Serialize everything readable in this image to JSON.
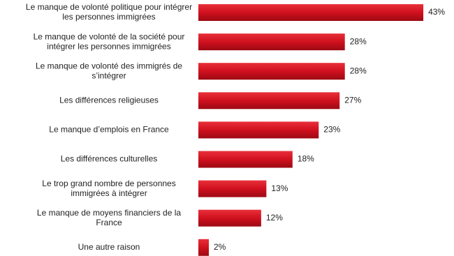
{
  "chart_data": {
    "type": "hbar",
    "categories": [
      [
        "Le manque de volonté politique pour intégrer",
        "les personnes immigrées"
      ],
      [
        "Le manque de volonté de la société pour",
        "intégrer les personnes immigrées"
      ],
      [
        "Le manque de volonté des immigrés de",
        "s’intégrer"
      ],
      [
        "Les différences religieuses"
      ],
      [
        "Le manque d’emplois en France"
      ],
      [
        "Les différences culturelles"
      ],
      [
        "Le trop grand nombre de personnes",
        "immigrées à intégrer"
      ],
      [
        "Le manque de moyens financiers de la",
        "France"
      ],
      [
        "Une autre raison"
      ]
    ],
    "values": [
      43,
      28,
      28,
      27,
      23,
      18,
      13,
      12,
      2
    ],
    "value_labels": [
      "43%",
      "28%",
      "28%",
      "27%",
      "23%",
      "18%",
      "13%",
      "12%",
      "2%"
    ],
    "color": "#d0101e"
  }
}
